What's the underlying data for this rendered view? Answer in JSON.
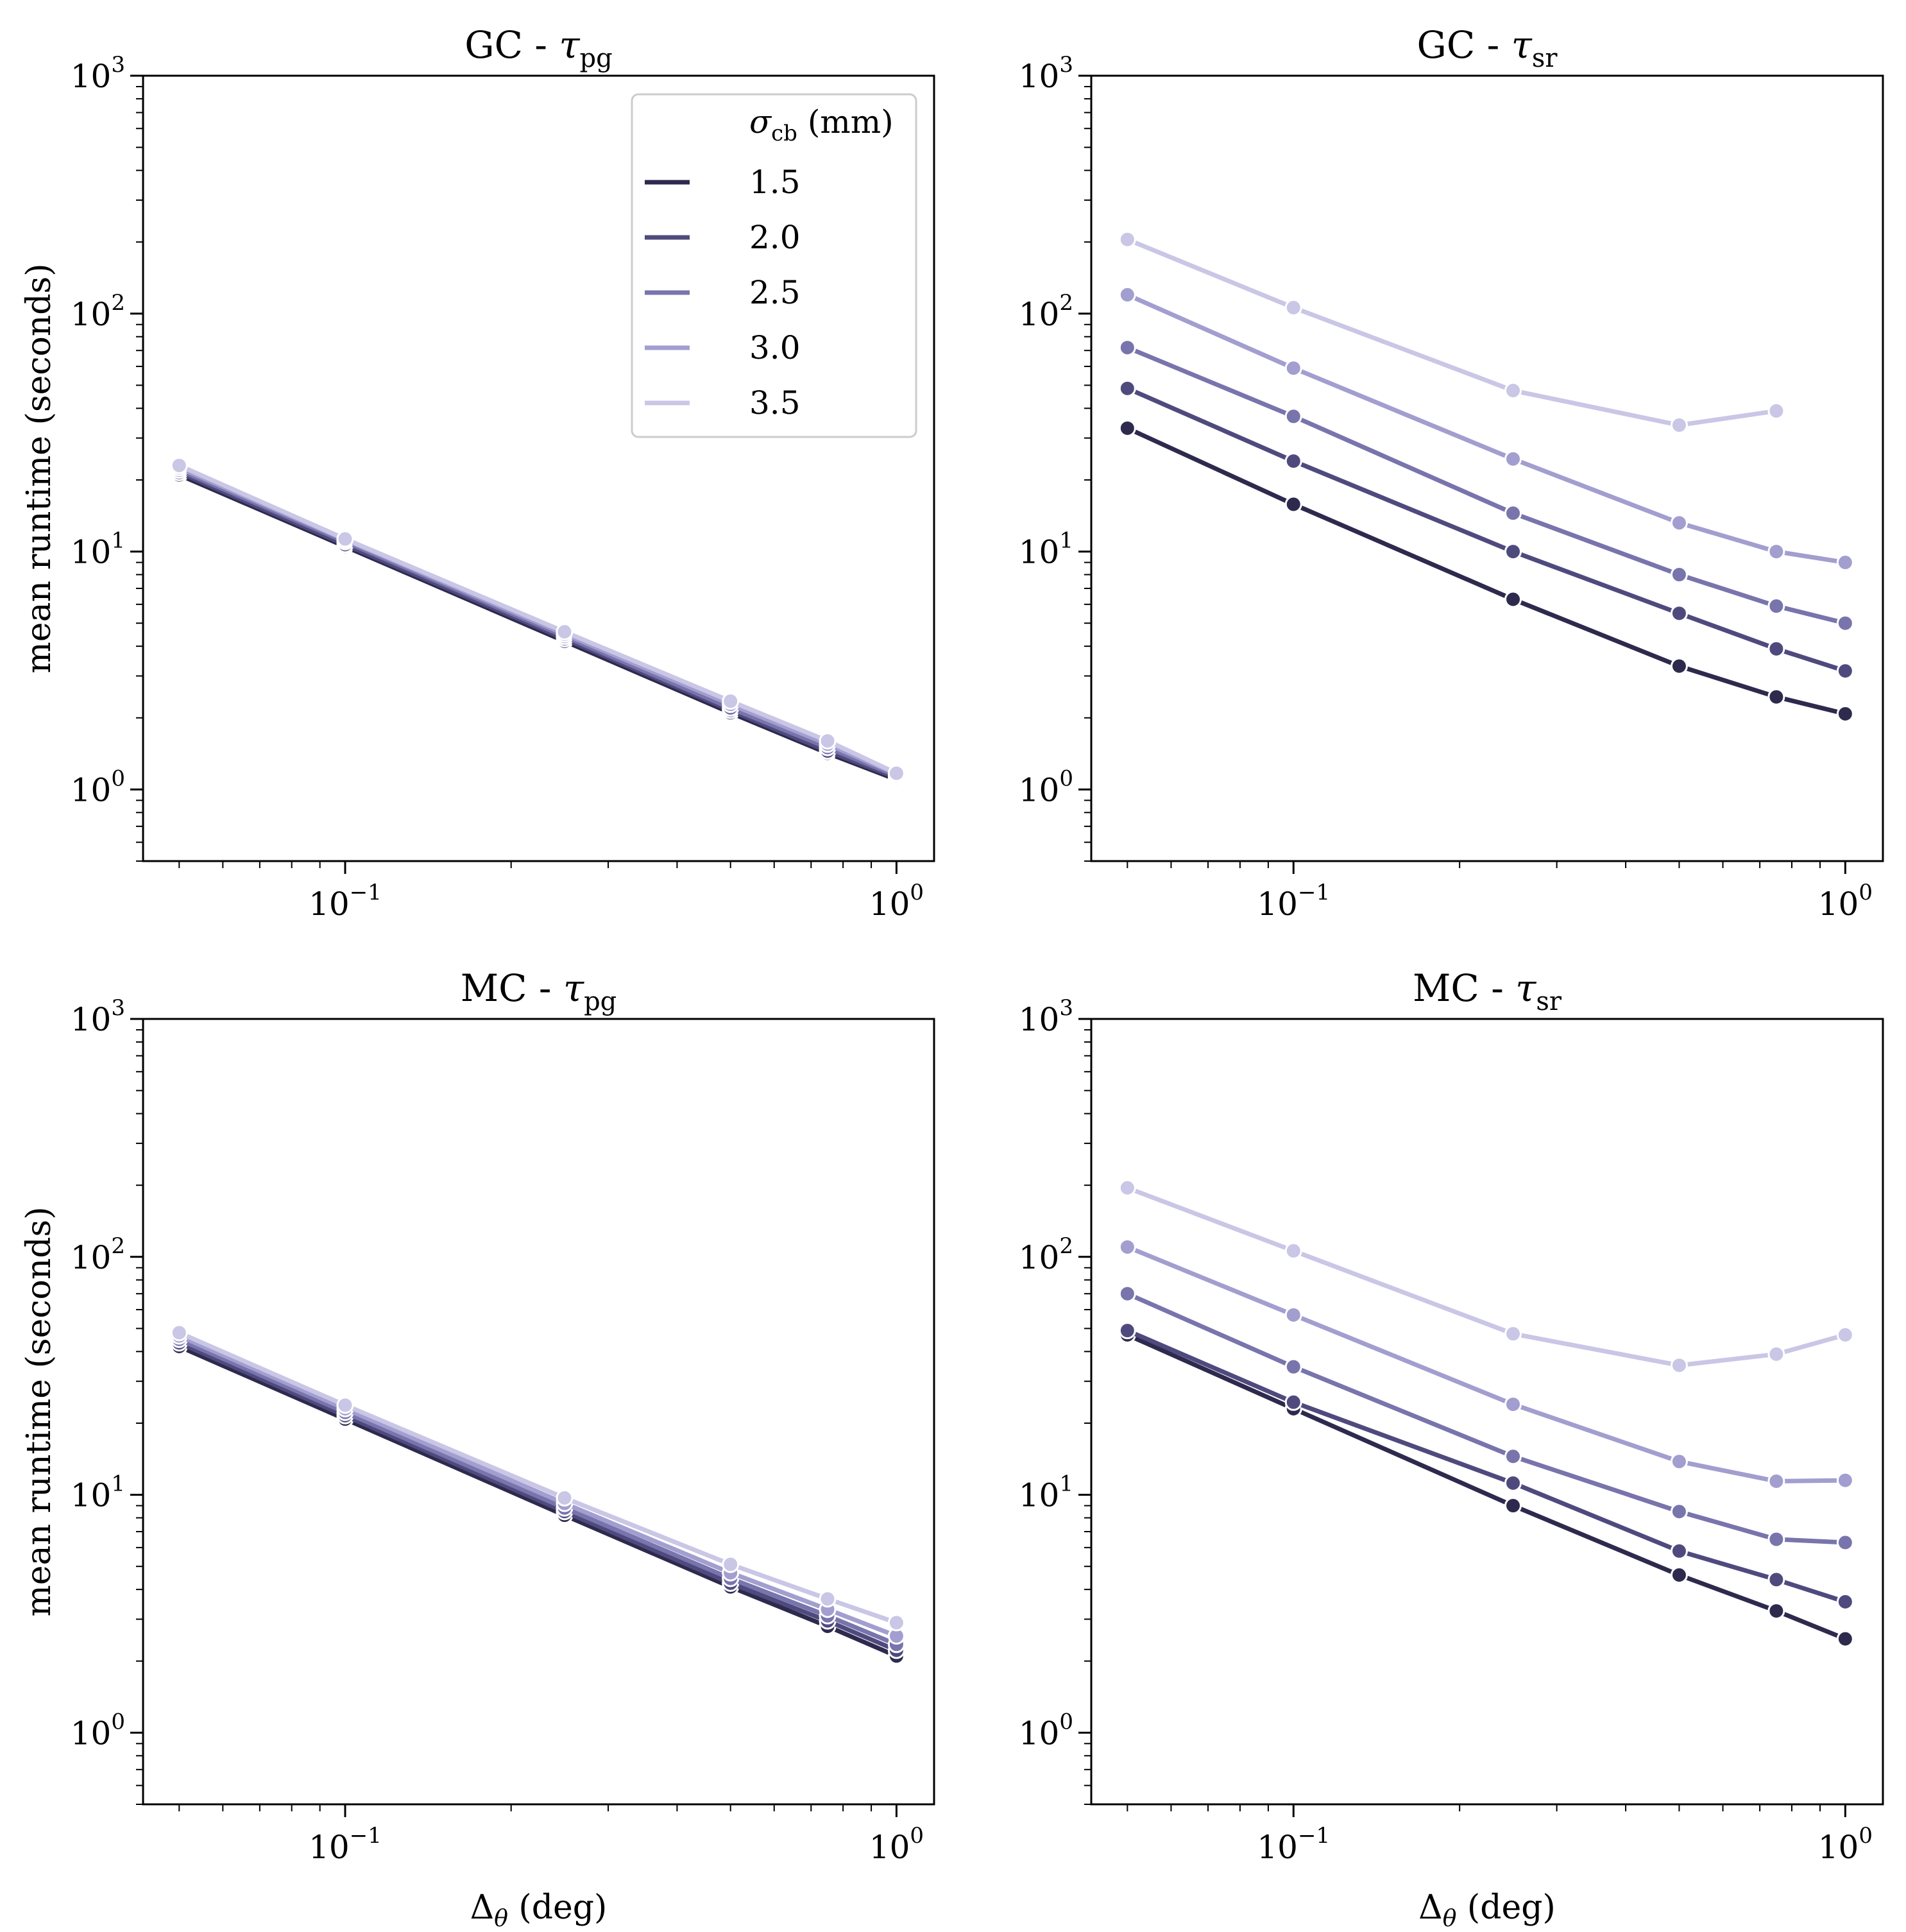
{
  "figure": {
    "shared_ylabel": "mean runtime (seconds)",
    "shared_xlabel_base": "Δ",
    "shared_xlabel_sub": "θ",
    "shared_xlabel_unit": " (deg)"
  },
  "legend": {
    "title_symbol": "σ",
    "title_sub": "cb",
    "title_unit": " (mm)",
    "entries": [
      "1.5",
      "2.0",
      "2.5",
      "3.0",
      "3.5"
    ]
  },
  "colors": {
    "series": [
      "#2e2a4e",
      "#4f4a7e",
      "#7874ac",
      "#a29ecf",
      "#c9c6e6"
    ],
    "axis": "#000000",
    "marker_edge": "#ffffff"
  },
  "chart_data": [
    {
      "type": "line",
      "title_prefix": "GC - ",
      "title_symbol": "τ",
      "title_sub": "pg",
      "xscale": "log",
      "yscale": "log",
      "xlim": [
        0.043,
        1.17
      ],
      "ylim": [
        0.5,
        1000
      ],
      "x_ticklabels": [
        {
          "base": "10",
          "exp": "−1",
          "v": 0.1
        },
        {
          "base": "10",
          "exp": "0",
          "v": 1
        }
      ],
      "y_ticklabels": [
        {
          "base": "10",
          "exp": "0",
          "v": 1
        },
        {
          "base": "10",
          "exp": "1",
          "v": 10
        },
        {
          "base": "10",
          "exp": "2",
          "v": 100
        },
        {
          "base": "10",
          "exp": "3",
          "v": 1000
        }
      ],
      "xlabel_shown": false,
      "ylabel_shown": true,
      "legend_shown": true,
      "x": [
        0.05,
        0.1,
        0.25,
        0.5,
        0.75,
        1.0
      ],
      "series": [
        {
          "name": "1.5",
          "values": [
            21.0,
            10.5,
            4.2,
            2.1,
            1.42,
            1.1
          ]
        },
        {
          "name": "2.0",
          "values": [
            21.5,
            10.7,
            4.3,
            2.15,
            1.45,
            1.12
          ]
        },
        {
          "name": "2.5",
          "values": [
            22.0,
            11.0,
            4.4,
            2.2,
            1.5,
            1.14
          ]
        },
        {
          "name": "3.0",
          "values": [
            22.5,
            11.2,
            4.5,
            2.28,
            1.55,
            1.16
          ]
        },
        {
          "name": "3.5",
          "values": [
            23.0,
            11.3,
            4.6,
            2.35,
            1.6,
            1.17
          ]
        }
      ]
    },
    {
      "type": "line",
      "title_prefix": "GC - ",
      "title_symbol": "τ",
      "title_sub": "sr",
      "xscale": "log",
      "yscale": "log",
      "xlim": [
        0.043,
        1.17
      ],
      "ylim": [
        0.5,
        1000
      ],
      "x_ticklabels": [
        {
          "base": "10",
          "exp": "−1",
          "v": 0.1
        },
        {
          "base": "10",
          "exp": "0",
          "v": 1
        }
      ],
      "y_ticklabels": [
        {
          "base": "10",
          "exp": "0",
          "v": 1
        },
        {
          "base": "10",
          "exp": "1",
          "v": 10
        },
        {
          "base": "10",
          "exp": "2",
          "v": 100
        },
        {
          "base": "10",
          "exp": "3",
          "v": 1000
        }
      ],
      "xlabel_shown": false,
      "ylabel_shown": false,
      "legend_shown": false,
      "x": [
        0.05,
        0.1,
        0.25,
        0.5,
        0.75,
        1.0
      ],
      "series": [
        {
          "name": "1.5",
          "values": [
            33.0,
            15.8,
            6.3,
            3.3,
            2.45,
            2.08
          ]
        },
        {
          "name": "2.0",
          "values": [
            48.5,
            24.0,
            10.0,
            5.5,
            3.9,
            3.15
          ]
        },
        {
          "name": "2.5",
          "values": [
            72.0,
            37.0,
            14.5,
            8.0,
            5.9,
            5.0
          ]
        },
        {
          "name": "3.0",
          "values": [
            120.0,
            59.0,
            24.5,
            13.2,
            10.0,
            9.0
          ]
        },
        {
          "name": "3.5",
          "values": [
            205.0,
            106.0,
            47.5,
            34.0,
            39.0,
            null
          ]
        }
      ]
    },
    {
      "type": "line",
      "title_prefix": "MC - ",
      "title_symbol": "τ",
      "title_sub": "pg",
      "xscale": "log",
      "yscale": "log",
      "xlim": [
        0.043,
        1.17
      ],
      "ylim": [
        0.5,
        1000
      ],
      "x_ticklabels": [
        {
          "base": "10",
          "exp": "−1",
          "v": 0.1
        },
        {
          "base": "10",
          "exp": "0",
          "v": 1
        }
      ],
      "y_ticklabels": [
        {
          "base": "10",
          "exp": "0",
          "v": 1
        },
        {
          "base": "10",
          "exp": "1",
          "v": 10
        },
        {
          "base": "10",
          "exp": "2",
          "v": 100
        },
        {
          "base": "10",
          "exp": "3",
          "v": 1000
        }
      ],
      "xlabel_shown": true,
      "ylabel_shown": true,
      "legend_shown": false,
      "x": [
        0.05,
        0.1,
        0.25,
        0.5,
        0.75,
        1.0
      ],
      "series": [
        {
          "name": "1.5",
          "values": [
            42.0,
            20.8,
            8.2,
            4.1,
            2.8,
            2.1
          ]
        },
        {
          "name": "2.0",
          "values": [
            43.5,
            21.5,
            8.5,
            4.25,
            2.95,
            2.22
          ]
        },
        {
          "name": "2.5",
          "values": [
            45.0,
            22.2,
            8.8,
            4.45,
            3.1,
            2.35
          ]
        },
        {
          "name": "3.0",
          "values": [
            46.5,
            23.0,
            9.2,
            4.7,
            3.3,
            2.55
          ]
        },
        {
          "name": "3.5",
          "values": [
            48.0,
            23.8,
            9.7,
            5.1,
            3.65,
            2.9
          ]
        }
      ]
    },
    {
      "type": "line",
      "title_prefix": "MC - ",
      "title_symbol": "τ",
      "title_sub": "sr",
      "xscale": "log",
      "yscale": "log",
      "xlim": [
        0.043,
        1.17
      ],
      "ylim": [
        0.5,
        1000
      ],
      "x_ticklabels": [
        {
          "base": "10",
          "exp": "−1",
          "v": 0.1
        },
        {
          "base": "10",
          "exp": "0",
          "v": 1
        }
      ],
      "y_ticklabels": [
        {
          "base": "10",
          "exp": "0",
          "v": 1
        },
        {
          "base": "10",
          "exp": "1",
          "v": 10
        },
        {
          "base": "10",
          "exp": "2",
          "v": 100
        },
        {
          "base": "10",
          "exp": "3",
          "v": 1000
        }
      ],
      "xlabel_shown": true,
      "ylabel_shown": false,
      "legend_shown": false,
      "x": [
        0.05,
        0.1,
        0.25,
        0.5,
        0.75,
        1.0
      ],
      "series": [
        {
          "name": "1.5",
          "values": [
            47.0,
            23.0,
            9.0,
            4.6,
            3.25,
            2.48
          ]
        },
        {
          "name": "2.0",
          "values": [
            49.0,
            24.5,
            11.2,
            5.8,
            4.4,
            3.55
          ]
        },
        {
          "name": "2.5",
          "values": [
            70.0,
            34.5,
            14.5,
            8.5,
            6.5,
            6.3
          ]
        },
        {
          "name": "3.0",
          "values": [
            110.0,
            57.0,
            24.0,
            13.8,
            11.4,
            11.5
          ]
        },
        {
          "name": "3.5",
          "values": [
            195.0,
            106.0,
            47.5,
            35.0,
            39.0,
            47.0
          ]
        }
      ]
    }
  ]
}
